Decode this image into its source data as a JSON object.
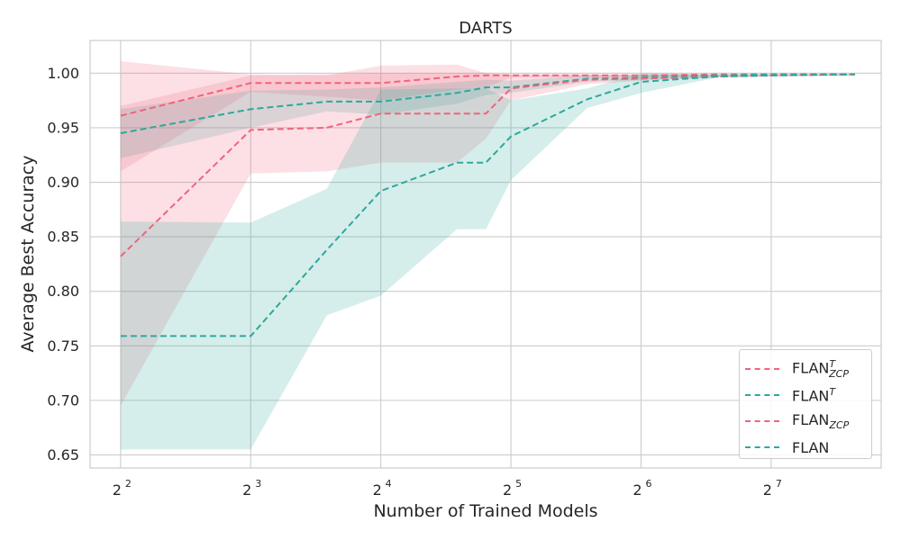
{
  "chart_data": {
    "type": "line",
    "title": "DARTS",
    "xlabel": "Number of Trained Models",
    "ylabel": "Average Best Accuracy",
    "x_scale": "log2",
    "xlim": [
      3.4,
      230
    ],
    "ylim": [
      0.638,
      1.03
    ],
    "x_ticks": [
      4,
      8,
      16,
      32,
      64,
      128
    ],
    "x_tick_labels": [
      {
        "base": "2",
        "exp": "2"
      },
      {
        "base": "2",
        "exp": "3"
      },
      {
        "base": "2",
        "exp": "4"
      },
      {
        "base": "2",
        "exp": "5"
      },
      {
        "base": "2",
        "exp": "6"
      },
      {
        "base": "2",
        "exp": "7"
      }
    ],
    "y_ticks": [
      0.65,
      0.7,
      0.75,
      0.8,
      0.85,
      0.9,
      0.95,
      1.0
    ],
    "y_tick_labels": [
      "0.65",
      "0.70",
      "0.75",
      "0.80",
      "0.85",
      "0.90",
      "0.95",
      "1.00"
    ],
    "grid": true,
    "legend_position": "bottom-right",
    "series": [
      {
        "name": "FLAN^T_ZCP",
        "legend": {
          "base": "FLAN",
          "sup": "T",
          "sub": "ZCP"
        },
        "color": "#f0647d",
        "x": [
          4,
          8,
          16,
          24,
          28,
          32,
          48,
          64,
          96,
          128,
          200
        ],
        "y": [
          0.961,
          0.991,
          0.991,
          0.997,
          0.998,
          0.998,
          0.998,
          0.998,
          0.999,
          0.999,
          0.999
        ],
        "lower": [
          0.91,
          0.983,
          0.975,
          0.985,
          0.987,
          0.996,
          0.996,
          0.997,
          0.998,
          0.998,
          0.998
        ],
        "upper": [
          0.97,
          0.998,
          1.0,
          1.0,
          1.0,
          0.999,
          0.999,
          0.999,
          0.999,
          0.999,
          0.999
        ]
      },
      {
        "name": "FLAN^T",
        "legend": {
          "base": "FLAN",
          "sup": "T",
          "sub": ""
        },
        "color": "#2ea89d",
        "x": [
          4,
          8,
          12,
          16,
          24,
          28,
          32,
          48,
          64,
          96,
          128,
          200
        ],
        "y": [
          0.945,
          0.967,
          0.974,
          0.974,
          0.982,
          0.987,
          0.987,
          0.995,
          0.996,
          0.998,
          0.999,
          0.999
        ],
        "lower": [
          0.922,
          0.95,
          0.965,
          0.962,
          0.972,
          0.98,
          0.982,
          0.992,
          0.994,
          0.997,
          0.998,
          0.998
        ],
        "upper": [
          0.967,
          0.984,
          0.985,
          0.987,
          0.992,
          0.994,
          0.993,
          0.998,
          0.998,
          0.999,
          0.999,
          0.999
        ]
      },
      {
        "name": "FLAN_ZCP",
        "legend": {
          "base": "FLAN",
          "sup": "",
          "sub": "ZCP"
        },
        "color": "#f0647d",
        "x": [
          4,
          8,
          12,
          16,
          24,
          28,
          32,
          48,
          64,
          96,
          128,
          200
        ],
        "y": [
          0.832,
          0.948,
          0.95,
          0.963,
          0.963,
          0.963,
          0.986,
          0.994,
          0.995,
          0.997,
          0.998,
          0.999
        ],
        "lower": [
          0.695,
          0.908,
          0.91,
          0.918,
          0.918,
          0.94,
          0.975,
          0.99,
          0.993,
          0.996,
          0.997,
          0.998
        ],
        "upper": [
          1.011,
          0.999,
          0.998,
          1.007,
          1.008,
          1.0,
          0.999,
          0.999,
          0.999,
          0.999,
          0.999,
          0.999
        ]
      },
      {
        "name": "FLAN",
        "legend": {
          "base": "FLAN",
          "sup": "",
          "sub": ""
        },
        "color": "#2ea89d",
        "x": [
          4,
          8,
          12,
          16,
          24,
          28,
          32,
          48,
          64,
          96,
          128,
          200
        ],
        "y": [
          0.759,
          0.759,
          0.838,
          0.892,
          0.918,
          0.918,
          0.942,
          0.976,
          0.992,
          0.997,
          0.998,
          0.999
        ],
        "lower": [
          0.655,
          0.655,
          0.778,
          0.796,
          0.857,
          0.857,
          0.902,
          0.968,
          0.982,
          0.996,
          0.997,
          0.998
        ],
        "upper": [
          0.864,
          0.863,
          0.894,
          0.985,
          0.986,
          0.986,
          0.975,
          0.986,
          1.0,
          0.999,
          0.999,
          0.999
        ]
      }
    ]
  }
}
